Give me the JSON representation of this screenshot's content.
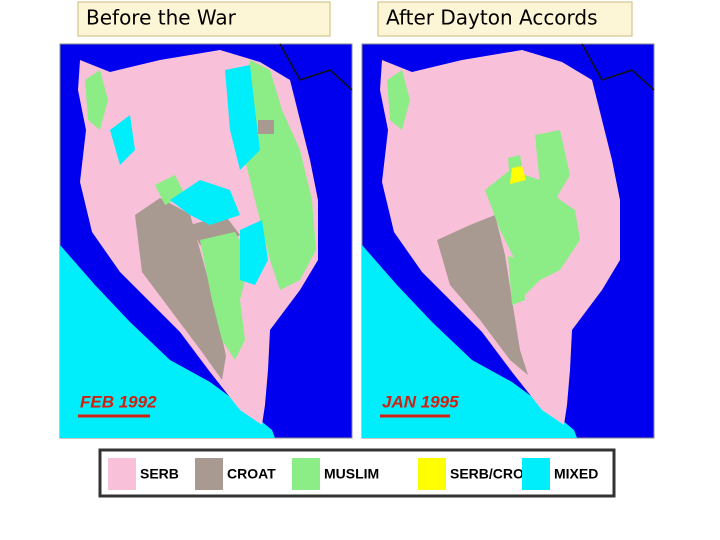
{
  "captions": [
    "Before the War",
    "After Dayton Accords"
  ],
  "maps": [
    {
      "date_label": "FEB 1992"
    },
    {
      "date_label": "JAN 1995"
    }
  ],
  "legend": [
    {
      "label": "SERB",
      "color": "#f9c0da"
    },
    {
      "label": "CROAT",
      "color": "#a89a91"
    },
    {
      "label": "MUSLIM",
      "color": "#8ced86"
    },
    {
      "label": "SERB/CROAT",
      "color": "#ffff00"
    },
    {
      "label": "MIXED",
      "color": "#00eefc"
    }
  ]
}
